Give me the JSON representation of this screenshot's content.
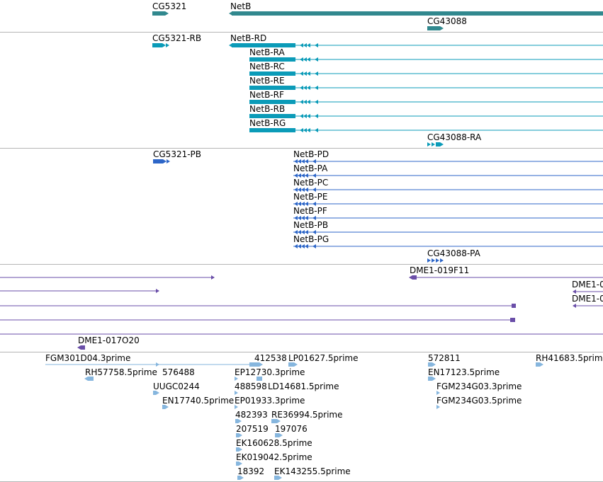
{
  "colors": {
    "gene": "#31888e",
    "transcript": "#0b9bb8",
    "protein": "#2d66c8",
    "cdna": "#6a4ea8",
    "est": "#86b6de",
    "separator": "#b5b5b5"
  },
  "tracks": [
    {
      "id": "genes",
      "features": [
        {
          "label": "CG5321",
          "color": "gene"
        },
        {
          "label": "NetB",
          "color": "gene"
        },
        {
          "label": "CG43088",
          "color": "gene"
        }
      ]
    },
    {
      "id": "transcripts",
      "features": [
        {
          "label": "CG5321-RB",
          "color": "transcript"
        },
        {
          "label": "NetB-RD",
          "color": "transcript"
        },
        {
          "label": "NetB-RA",
          "color": "transcript"
        },
        {
          "label": "NetB-RC",
          "color": "transcript"
        },
        {
          "label": "NetB-RE",
          "color": "transcript"
        },
        {
          "label": "NetB-RF",
          "color": "transcript"
        },
        {
          "label": "NetB-RB",
          "color": "transcript"
        },
        {
          "label": "NetB-RG",
          "color": "transcript"
        },
        {
          "label": "CG43088-RA",
          "color": "transcript"
        }
      ]
    },
    {
      "id": "proteins",
      "features": [
        {
          "label": "CG5321-PB",
          "color": "protein"
        },
        {
          "label": "NetB-PD",
          "color": "protein"
        },
        {
          "label": "NetB-PA",
          "color": "protein"
        },
        {
          "label": "NetB-PC",
          "color": "protein"
        },
        {
          "label": "NetB-PE",
          "color": "protein"
        },
        {
          "label": "NetB-PF",
          "color": "protein"
        },
        {
          "label": "NetB-PB",
          "color": "protein"
        },
        {
          "label": "NetB-PG",
          "color": "protein"
        },
        {
          "label": "CG43088-PA",
          "color": "protein"
        }
      ]
    },
    {
      "id": "cdna",
      "features": [
        {
          "label": "DME1-019F11",
          "color": "cdna"
        },
        {
          "label": "DME1-0",
          "color": "cdna"
        },
        {
          "label": "DME1-0",
          "color": "cdna"
        },
        {
          "label": "DME1-017O20",
          "color": "cdna"
        }
      ]
    },
    {
      "id": "est",
      "features": [
        {
          "label": "FGM301D04.3prime",
          "color": "est"
        },
        {
          "label": "412538",
          "color": "est"
        },
        {
          "label": "LP01627.5prime",
          "color": "est"
        },
        {
          "label": "572811",
          "color": "est"
        },
        {
          "label": "RH41683.5prime",
          "color": "est"
        },
        {
          "label": "RH57758.5prime",
          "color": "est"
        },
        {
          "label": "576488",
          "color": "est"
        },
        {
          "label": "EP12730.3prime",
          "color": "est"
        },
        {
          "label": "EN17123.5prime",
          "color": "est"
        },
        {
          "label": "UUGC0244",
          "color": "est"
        },
        {
          "label": "488598",
          "color": "est"
        },
        {
          "label": "LD14681.5prime",
          "color": "est"
        },
        {
          "label": "FGM234G03.3prime",
          "color": "est"
        },
        {
          "label": "EN17740.5prime",
          "color": "est"
        },
        {
          "label": "EP01933.3prime",
          "color": "est"
        },
        {
          "label": "FGM234G03.5prime",
          "color": "est"
        },
        {
          "label": "482393",
          "color": "est"
        },
        {
          "label": "RE36994.5prime",
          "color": "est"
        },
        {
          "label": "207519",
          "color": "est"
        },
        {
          "label": "197076",
          "color": "est"
        },
        {
          "label": "EK160628.5prime",
          "color": "est"
        },
        {
          "label": "EK019042.5prime",
          "color": "est"
        },
        {
          "label": "18392",
          "color": "est"
        },
        {
          "label": "EK143255.5prime",
          "color": "est"
        }
      ]
    }
  ]
}
